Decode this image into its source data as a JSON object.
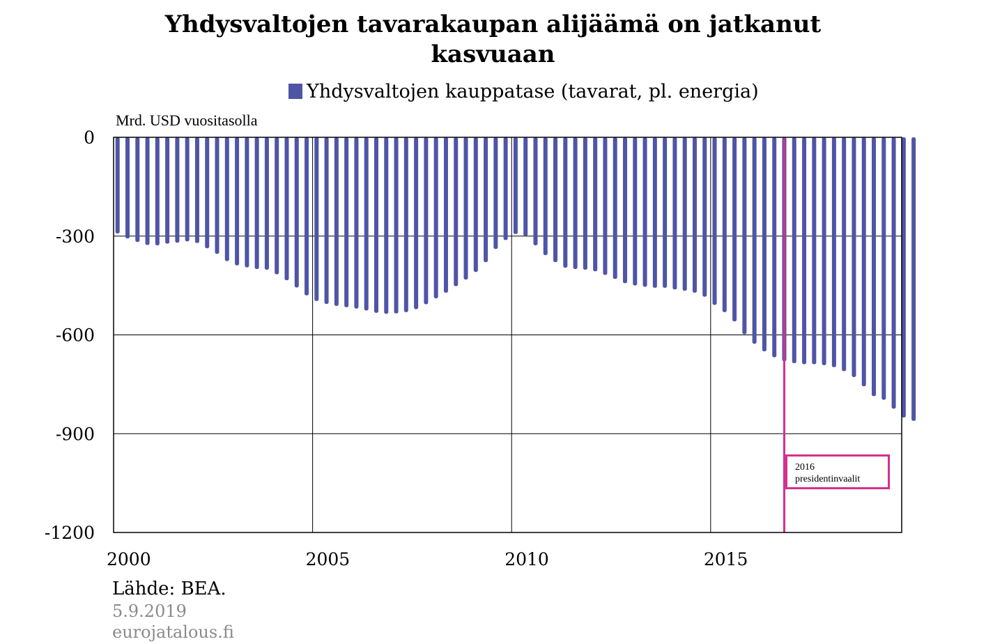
{
  "chart_data": {
    "type": "bar",
    "title_lines": [
      "Yhdysvaltojen tavarakaupan alijäämä on jatkanut",
      "kasvuaan"
    ],
    "ylabel": "Mrd. USD vuositasolla",
    "legend_position": "top-center",
    "grid": true,
    "series": [
      {
        "name": "Yhdysvaltojen kauppatase (tavarat, pl. energia)",
        "color": "#4f55a5",
        "x_start": "2000Q1",
        "frequency": "quarterly",
        "values": [
          -292,
          -307,
          -318,
          -327,
          -328,
          -323,
          -320,
          -316,
          -321,
          -337,
          -354,
          -376,
          -389,
          -395,
          -400,
          -402,
          -416,
          -434,
          -456,
          -480,
          -497,
          -506,
          -512,
          -516,
          -520,
          -526,
          -533,
          -536,
          -535,
          -531,
          -522,
          -507,
          -489,
          -472,
          -452,
          -432,
          -409,
          -379,
          -339,
          -312,
          -294,
          -300,
          -328,
          -358,
          -379,
          -396,
          -400,
          -402,
          -407,
          -418,
          -430,
          -443,
          -450,
          -454,
          -457,
          -457,
          -462,
          -466,
          -472,
          -484,
          -509,
          -531,
          -559,
          -598,
          -627,
          -650,
          -668,
          -680,
          -686,
          -689,
          -689,
          -692,
          -698,
          -710,
          -728,
          -756,
          -786,
          -797,
          -824,
          -851,
          -861
        ]
      }
    ],
    "y_ticks": [
      0,
      -300,
      -600,
      -900,
      -1200
    ],
    "y_tick_labels": [
      "0",
      "-300",
      "-600",
      "-900",
      "-1200"
    ],
    "ylim": [
      -1200,
      0
    ],
    "x_ticks": [
      "2000",
      "2005",
      "2010",
      "2015"
    ],
    "event_line": {
      "at": "2016Q4",
      "color": "#d4308e"
    },
    "annotation_lines": [
      "2016",
      "presidentinvaalit"
    ],
    "annotation_color": "#d4308e"
  },
  "footer": {
    "source": "Lähde: BEA.",
    "date": "5.9.2019",
    "site": "eurojatalous.fi"
  }
}
